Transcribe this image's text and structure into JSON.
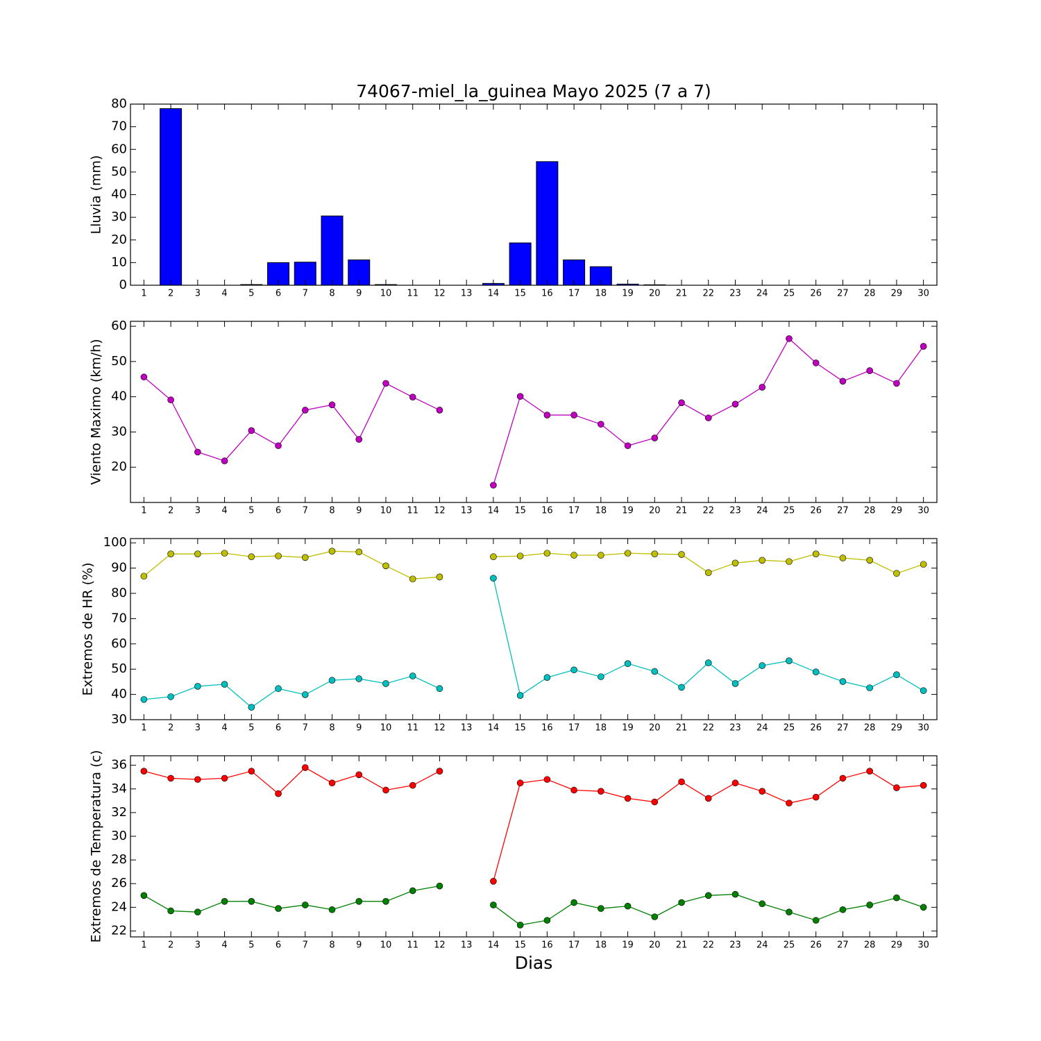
{
  "chart_data": [
    {
      "type": "bar",
      "title": "74067-miel_la_guinea Mayo 2025  (7 a 7)",
      "ylabel": "Lluvia (mm)",
      "x": [
        1,
        2,
        3,
        4,
        5,
        6,
        7,
        8,
        9,
        10,
        11,
        12,
        13,
        14,
        15,
        16,
        17,
        18,
        19,
        20,
        21,
        22,
        23,
        24,
        25,
        26,
        27,
        28,
        29,
        30
      ],
      "values": [
        0,
        78,
        0,
        0,
        0.3,
        10,
        10.2,
        30.6,
        11.2,
        0.3,
        0,
        0,
        0,
        0.8,
        18.7,
        54.6,
        11.2,
        8.2,
        0.5,
        0.2,
        0,
        0,
        0,
        0,
        0,
        0,
        0,
        0,
        0,
        0
      ],
      "color": "#0000ff",
      "xlim": [
        0.5,
        30.5
      ],
      "xticks": [
        1,
        2,
        3,
        4,
        5,
        6,
        7,
        8,
        9,
        10,
        11,
        12,
        13,
        14,
        15,
        16,
        17,
        18,
        19,
        20,
        21,
        22,
        23,
        24,
        25,
        26,
        27,
        28,
        29,
        30
      ],
      "ylim": [
        0,
        80
      ],
      "yticks": [
        0,
        10,
        20,
        30,
        40,
        50,
        60,
        70,
        80
      ]
    },
    {
      "type": "line",
      "ylabel": "Viento Maximo (km/h)",
      "x": [
        1,
        2,
        3,
        4,
        5,
        6,
        7,
        8,
        9,
        10,
        11,
        12,
        13,
        14,
        15,
        16,
        17,
        18,
        19,
        20,
        21,
        22,
        23,
        24,
        25,
        26,
        27,
        28,
        29,
        30
      ],
      "series": [
        {
          "color": "#bf00bf",
          "values": [
            45.6,
            39.1,
            24.3,
            21.8,
            30.4,
            26.1,
            36.2,
            37.7,
            27.9,
            43.8,
            39.9,
            36.2,
            null,
            14.9,
            40.1,
            34.8,
            34.8,
            32.2,
            26.1,
            28.3,
            38.3,
            34,
            37.9,
            42.7,
            56.5,
            49.6,
            44.4,
            47.4,
            43.8,
            54.3
          ]
        }
      ],
      "xlim": [
        0.5,
        30.5
      ],
      "xticks": [
        1,
        2,
        3,
        4,
        5,
        6,
        7,
        8,
        9,
        10,
        11,
        12,
        13,
        14,
        15,
        16,
        17,
        18,
        19,
        20,
        21,
        22,
        23,
        24,
        25,
        26,
        27,
        28,
        29,
        30
      ],
      "ylim": [
        10,
        61.4
      ],
      "yticks": [
        20,
        30,
        40,
        50,
        60
      ]
    },
    {
      "type": "line",
      "ylabel": "Extremos de HR (%)",
      "x": [
        1,
        2,
        3,
        4,
        5,
        6,
        7,
        8,
        9,
        10,
        11,
        12,
        13,
        14,
        15,
        16,
        17,
        18,
        19,
        20,
        21,
        22,
        23,
        24,
        25,
        26,
        27,
        28,
        29,
        30
      ],
      "series": [
        {
          "color": "#bfbf00",
          "values": [
            86.8,
            95.6,
            95.6,
            95.9,
            94.5,
            94.8,
            94.2,
            96.7,
            96.4,
            90.9,
            85.7,
            86.5,
            null,
            94.5,
            94.8,
            95.9,
            95.1,
            95.1,
            95.9,
            95.6,
            95.4,
            88.2,
            92.0,
            93.1,
            92.6,
            95.6,
            94.0,
            93.1,
            87.9,
            91.5
          ]
        },
        {
          "color": "#00bfbf",
          "values": [
            38.0,
            39.1,
            43.2,
            44.0,
            34.9,
            42.3,
            39.9,
            45.6,
            46.2,
            44.3,
            47.3,
            42.3,
            null,
            86.0,
            39.6,
            46.7,
            49.7,
            47.0,
            52.2,
            49.1,
            42.8,
            52.5,
            44.3,
            51.4,
            53.3,
            48.9,
            45.1,
            42.6,
            47.8,
            41.5
          ]
        }
      ],
      "xlim": [
        0.5,
        30.5
      ],
      "xticks": [
        1,
        2,
        3,
        4,
        5,
        6,
        7,
        8,
        9,
        10,
        11,
        12,
        13,
        14,
        15,
        16,
        17,
        18,
        19,
        20,
        21,
        22,
        23,
        24,
        25,
        26,
        27,
        28,
        29,
        30
      ],
      "ylim": [
        30,
        101.7
      ],
      "yticks": [
        30,
        40,
        50,
        60,
        70,
        80,
        90,
        100
      ]
    },
    {
      "type": "line",
      "ylabel": "Extremos de Temperatura (c)",
      "xlabel": "Dias",
      "x": [
        1,
        2,
        3,
        4,
        5,
        6,
        7,
        8,
        9,
        10,
        11,
        12,
        13,
        14,
        15,
        16,
        17,
        18,
        19,
        20,
        21,
        22,
        23,
        24,
        25,
        26,
        27,
        28,
        29,
        30
      ],
      "series": [
        {
          "color": "#ff0000",
          "values": [
            35.5,
            34.9,
            34.8,
            34.9,
            35.5,
            33.6,
            35.8,
            34.5,
            35.2,
            33.9,
            34.3,
            35.5,
            null,
            26.2,
            34.5,
            34.8,
            33.9,
            33.8,
            33.2,
            32.9,
            34.6,
            33.2,
            34.5,
            33.8,
            32.8,
            33.3,
            34.9,
            35.5,
            34.1,
            34.3
          ]
        },
        {
          "color": "#008000",
          "values": [
            25.0,
            23.7,
            23.6,
            24.5,
            24.5,
            23.9,
            24.2,
            23.8,
            24.5,
            24.5,
            25.4,
            25.8,
            null,
            24.2,
            22.5,
            22.9,
            24.4,
            23.9,
            24.1,
            23.2,
            24.4,
            25.0,
            25.1,
            24.3,
            23.6,
            22.9,
            23.8,
            24.2,
            24.8,
            24.0
          ]
        }
      ],
      "xlim": [
        0.5,
        30.5
      ],
      "xticks": [
        1,
        2,
        3,
        4,
        5,
        6,
        7,
        8,
        9,
        10,
        11,
        12,
        13,
        14,
        15,
        16,
        17,
        18,
        19,
        20,
        21,
        22,
        23,
        24,
        25,
        26,
        27,
        28,
        29,
        30
      ],
      "ylim": [
        21.5,
        36.8
      ],
      "yticks": [
        22,
        24,
        26,
        28,
        30,
        32,
        34,
        36
      ]
    }
  ]
}
